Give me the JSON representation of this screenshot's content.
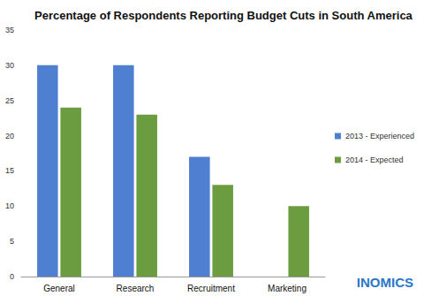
{
  "chart_data": {
    "type": "bar",
    "title": "Percentage of Respondents Reporting Budget Cuts in South America",
    "categories": [
      "General",
      "Research",
      "Recruitment",
      "Marketing"
    ],
    "series": [
      {
        "name": "2013 - Experienced",
        "color": "#4f7fd0",
        "values": [
          30,
          30,
          17,
          null
        ]
      },
      {
        "name": "2014 - Expected",
        "color": "#6b9c3f",
        "values": [
          24,
          23,
          13,
          10
        ]
      }
    ],
    "ylim": [
      0,
      35
    ],
    "yticks": [
      0,
      5,
      10,
      15,
      20,
      25,
      30,
      35
    ],
    "grid": false,
    "legend": "right",
    "annotation": "INOMICS"
  }
}
